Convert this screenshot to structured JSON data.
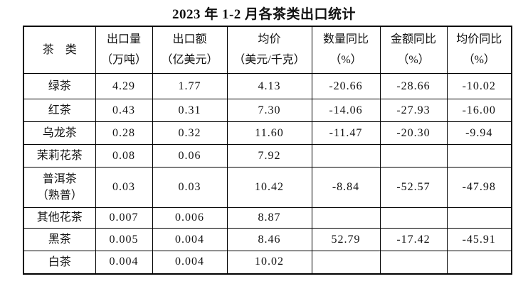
{
  "title": "2023 年 1-2 月各茶类出口统计",
  "colors": {
    "highlight_red": "#f70808",
    "text": "#111111",
    "border": "#000000",
    "background": "#ffffff"
  },
  "table": {
    "columns": [
      {
        "line1": "茶　类",
        "line2": ""
      },
      {
        "line1": "出口量",
        "line2": "（万吨）"
      },
      {
        "line1": "出口额",
        "line2": "（亿美元）"
      },
      {
        "line1": "均价",
        "line2": "（美元/千克）"
      },
      {
        "line1": "数量同比",
        "line2": "（%）"
      },
      {
        "line1": "金额同比",
        "line2": "（%）"
      },
      {
        "line1": "均价同比",
        "line2": "（%）"
      }
    ],
    "rows": [
      {
        "name_lines": [
          "绿茶"
        ],
        "cells": [
          "4.29",
          "1.77",
          "4.13",
          "-20.66",
          "-28.66",
          "-10.02"
        ],
        "red_cells": [
          3
        ]
      },
      {
        "name_lines": [
          "红茶"
        ],
        "cells": [
          "0.43",
          "0.31",
          "7.30",
          "-14.06",
          "-27.93",
          "-16.00"
        ],
        "red_cells": []
      },
      {
        "name_lines": [
          "乌龙茶"
        ],
        "cells": [
          "0.28",
          "0.32",
          "11.60",
          "-11.47",
          "-20.30",
          "-9.94"
        ],
        "red_cells": []
      },
      {
        "name_lines": [
          "茉莉花茶"
        ],
        "cells": [
          "0.08",
          "0.06",
          "7.92",
          "",
          "",
          ""
        ],
        "red_cells": []
      },
      {
        "name_lines": [
          "普洱茶",
          "（熟普）"
        ],
        "cells": [
          "0.03",
          "0.03",
          "10.42",
          "-8.84",
          "-52.57",
          "-47.98"
        ],
        "red_cells": []
      },
      {
        "name_lines": [
          "其他花茶"
        ],
        "cells": [
          "0.007",
          "0.006",
          "8.87",
          "",
          "",
          ""
        ],
        "red_cells": []
      },
      {
        "name_lines": [
          "黑茶"
        ],
        "cells": [
          "0.005",
          "0.004",
          "8.46",
          "52.79",
          "-17.42",
          "-45.91"
        ],
        "red_cells": [
          3
        ]
      },
      {
        "name_lines": [
          "白茶"
        ],
        "cells": [
          "0.004",
          "0.004",
          "10.02",
          "",
          "",
          ""
        ],
        "red_cells": []
      }
    ]
  }
}
